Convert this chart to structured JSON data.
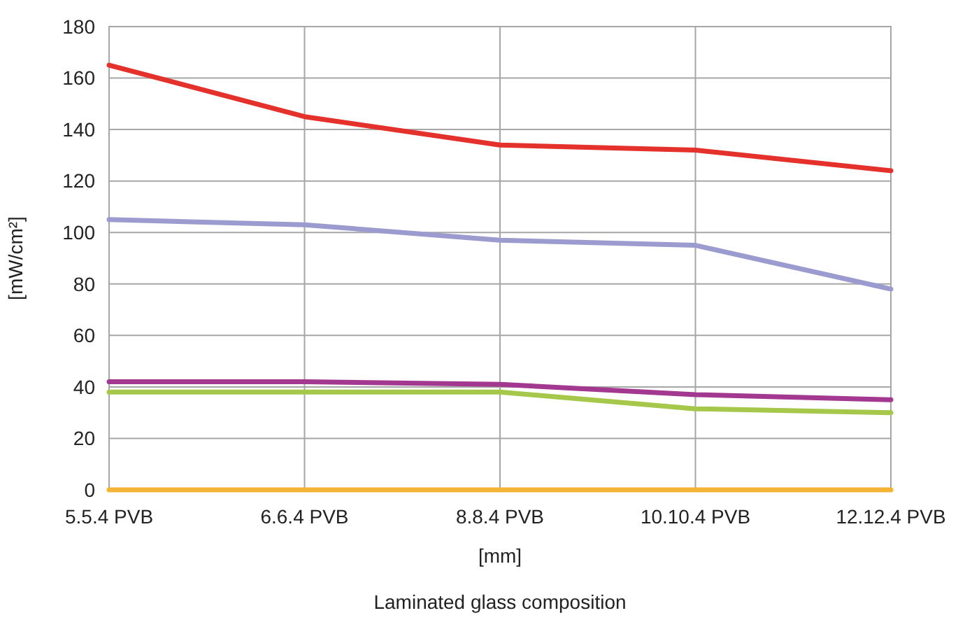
{
  "chart_data": {
    "type": "line",
    "categories": [
      "5.5.4 PVB",
      "6.6.4 PVB",
      "8.8.4 PVB",
      "10.10.4 PVB",
      "12.12.4 PVB"
    ],
    "ylabel": "[mW/cm²]",
    "xlabel": "[mm]",
    "annotations": [
      "Laminated glass composition"
    ],
    "ylim": [
      0,
      180
    ],
    "yticks": [
      0,
      20,
      40,
      60,
      80,
      100,
      120,
      140,
      160,
      180
    ],
    "grid": true,
    "marker": "none",
    "line_style": "solid",
    "series": [
      {
        "color": "#e5312b",
        "values": [
          165,
          145,
          134,
          132,
          124
        ]
      },
      {
        "color": "#9b9bcf",
        "values": [
          105,
          103,
          97,
          95,
          78
        ]
      },
      {
        "color": "#a2388f",
        "values": [
          42,
          42,
          41,
          37,
          35
        ]
      },
      {
        "color": "#a5c84a",
        "values": [
          38,
          38,
          38,
          31.5,
          30
        ]
      },
      {
        "color": "#f5b335",
        "values": [
          0,
          0,
          0,
          0,
          0
        ]
      }
    ]
  }
}
